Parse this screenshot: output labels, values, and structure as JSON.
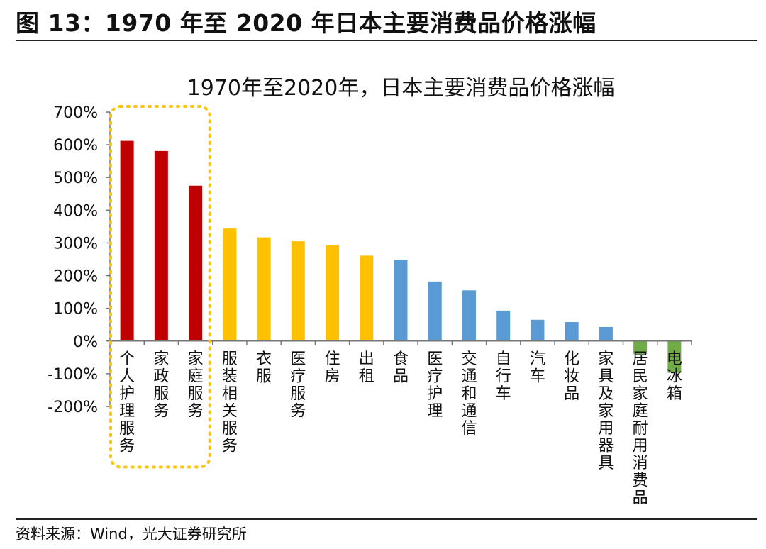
{
  "figure": {
    "title": "图 13：1970 年至 2020 年日本主要消费品价格涨幅",
    "source": "资料来源：Wind，光大证券研究所"
  },
  "colors": {
    "red": "#C00000",
    "yellow": "#FFC000",
    "blue": "#5B9BD5",
    "green": "#70AD47",
    "highlight": "#F5C518"
  },
  "chart_data": {
    "type": "bar",
    "title": "1970年至2020年，日本主要消费品价格涨幅",
    "xlabel": "",
    "ylabel": "",
    "ylim": [
      -200,
      700
    ],
    "yticks": [
      "700%",
      "600%",
      "500%",
      "400%",
      "300%",
      "200%",
      "100%",
      "0%",
      "-100%",
      "-200%"
    ],
    "categories": [
      "个人护理服务",
      "家政服务",
      "家庭服务",
      "服装相关服务",
      "衣服",
      "医疗服务",
      "住房",
      "出租",
      "食品",
      "医疗护理",
      "交通和通信",
      "自行车",
      "汽车",
      "化妆品",
      "家具及家用器具",
      "居民家庭耐用消费品",
      "电冰箱"
    ],
    "values": [
      612,
      581,
      475,
      344,
      317,
      305,
      293,
      261,
      249,
      182,
      155,
      93,
      65,
      58,
      43,
      -40,
      -97
    ],
    "color_groups": [
      "red",
      "red",
      "red",
      "yellow",
      "yellow",
      "yellow",
      "yellow",
      "yellow",
      "blue",
      "blue",
      "blue",
      "blue",
      "blue",
      "blue",
      "blue",
      "green",
      "green"
    ],
    "highlight": [
      "个人护理服务",
      "家政服务",
      "家庭服务"
    ],
    "grid": false
  }
}
